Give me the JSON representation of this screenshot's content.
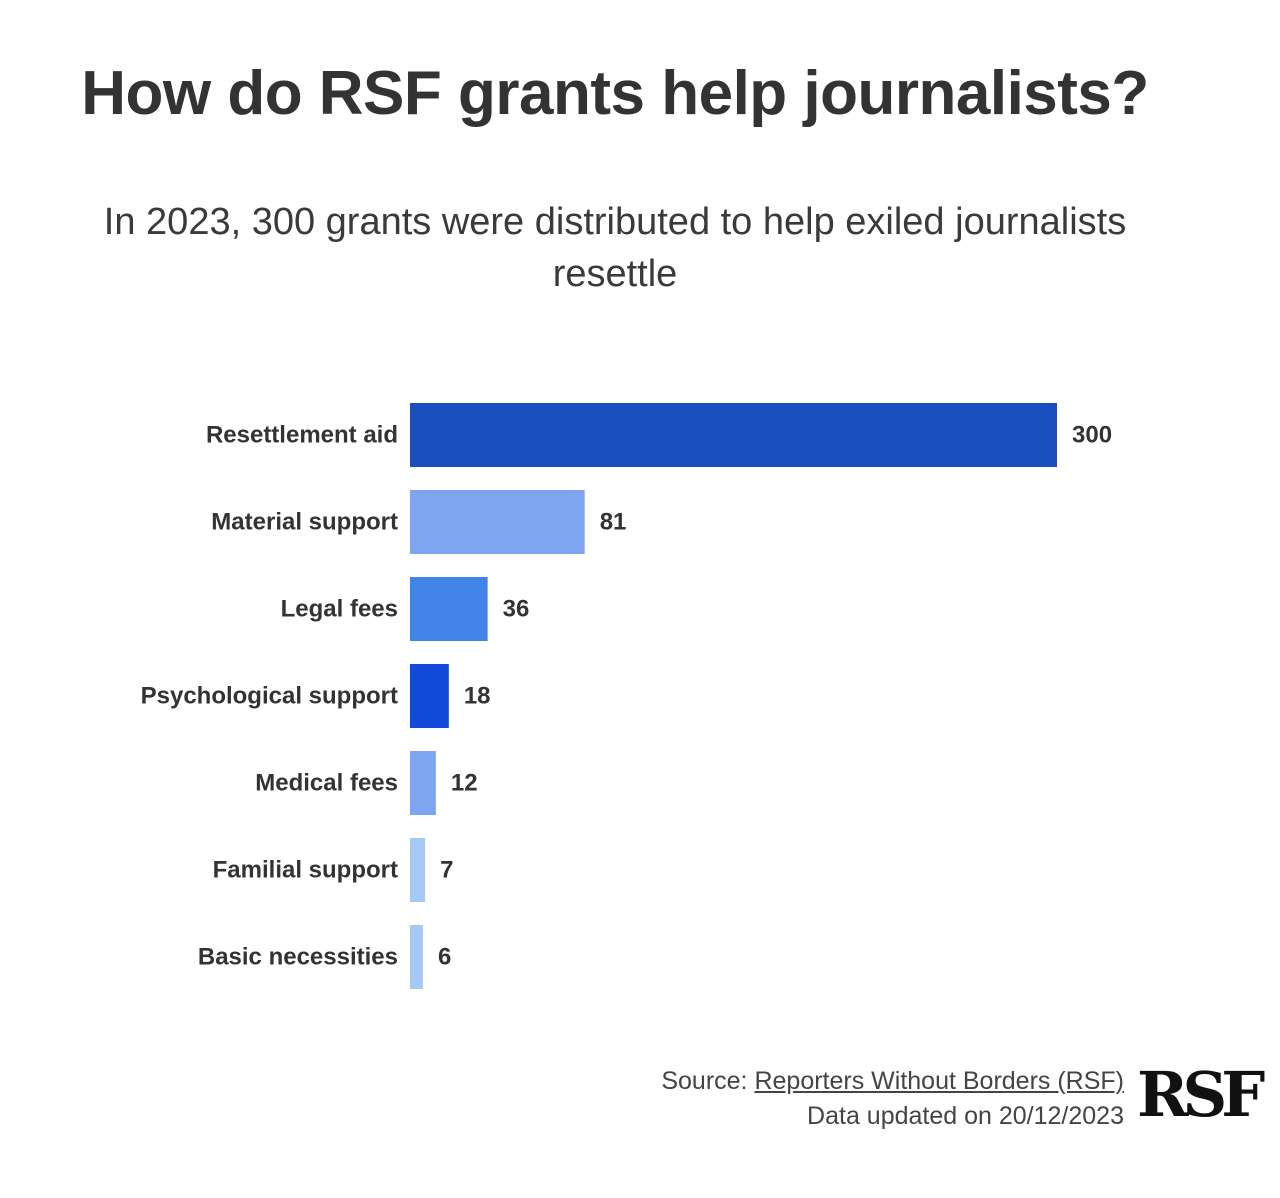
{
  "header": {
    "title": "How do RSF grants help journalists?",
    "subtitle": "In 2023, 300 grants were distributed to help exiled journalists resettle"
  },
  "chart_data": {
    "type": "bar",
    "orientation": "horizontal",
    "title": "How do RSF grants help journalists?",
    "subtitle": "In 2023, 300 grants were distributed to help exiled journalists resettle",
    "categories": [
      "Resettlement aid",
      "Material support",
      "Legal fees",
      "Psychological support",
      "Medical fees",
      "Familial support",
      "Basic necessities"
    ],
    "values": [
      300,
      81,
      36,
      18,
      12,
      7,
      6
    ],
    "colors": [
      "#1a4fc0",
      "#7ea5ef",
      "#4283e8",
      "#1149db",
      "#7ea5ef",
      "#a6c8f5",
      "#a6c8f5"
    ],
    "xlim": [
      0,
      300
    ],
    "grid": false,
    "legend": "none"
  },
  "footer": {
    "source_prefix": "Source: ",
    "source_link": "Reporters Without Borders (RSF)",
    "updated": "Data updated on 20/12/2023"
  },
  "logo": {
    "text": "RSF"
  }
}
